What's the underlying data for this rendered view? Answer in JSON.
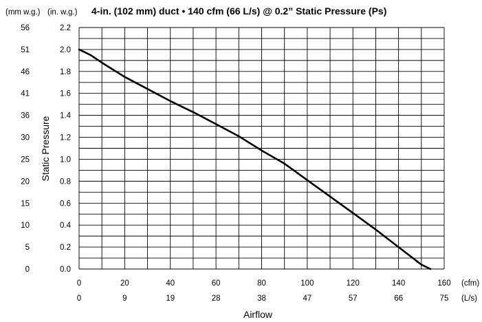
{
  "chart_data": {
    "type": "line",
    "title": "4-in. (102 mm) duct • 140 cfm (66 L/s) @ 0.2” Static Pressure (Ps)",
    "xlabel": "Airflow",
    "ylabel": "Static Pressure",
    "y_unit_primary": "(in. w.g.)",
    "y_unit_secondary": "(mm w.g.)",
    "x_unit_primary": "(cfm)",
    "x_unit_secondary": "(L/s)",
    "xlim": [
      0,
      160
    ],
    "ylim": [
      0,
      2.2
    ],
    "grid": true,
    "x_ticks": [
      0,
      20,
      40,
      60,
      80,
      100,
      120,
      140,
      160
    ],
    "x_ticks_secondary": [
      "0",
      "9",
      "19",
      "28",
      "38",
      "47",
      "57",
      "66",
      "75"
    ],
    "y_ticks": [
      "0.0",
      "0.2",
      "0.4",
      "0.6",
      "0.8",
      "1.0",
      "1.2",
      "1.4",
      "1.6",
      "1.8",
      "2.0",
      "2.2"
    ],
    "y_ticks_secondary": [
      "0",
      "5",
      "10",
      "15",
      "20",
      "25",
      "30",
      "36",
      "41",
      "46",
      "51",
      "56"
    ],
    "series": [
      {
        "x": [
          0,
          5,
          10,
          20,
          30,
          40,
          50,
          60,
          70,
          80,
          90,
          100,
          110,
          120,
          130,
          140,
          150,
          154
        ],
        "y": [
          2.0,
          1.95,
          1.88,
          1.75,
          1.64,
          1.53,
          1.43,
          1.32,
          1.21,
          1.08,
          0.96,
          0.81,
          0.66,
          0.51,
          0.36,
          0.2,
          0.04,
          0.0
        ]
      }
    ]
  }
}
